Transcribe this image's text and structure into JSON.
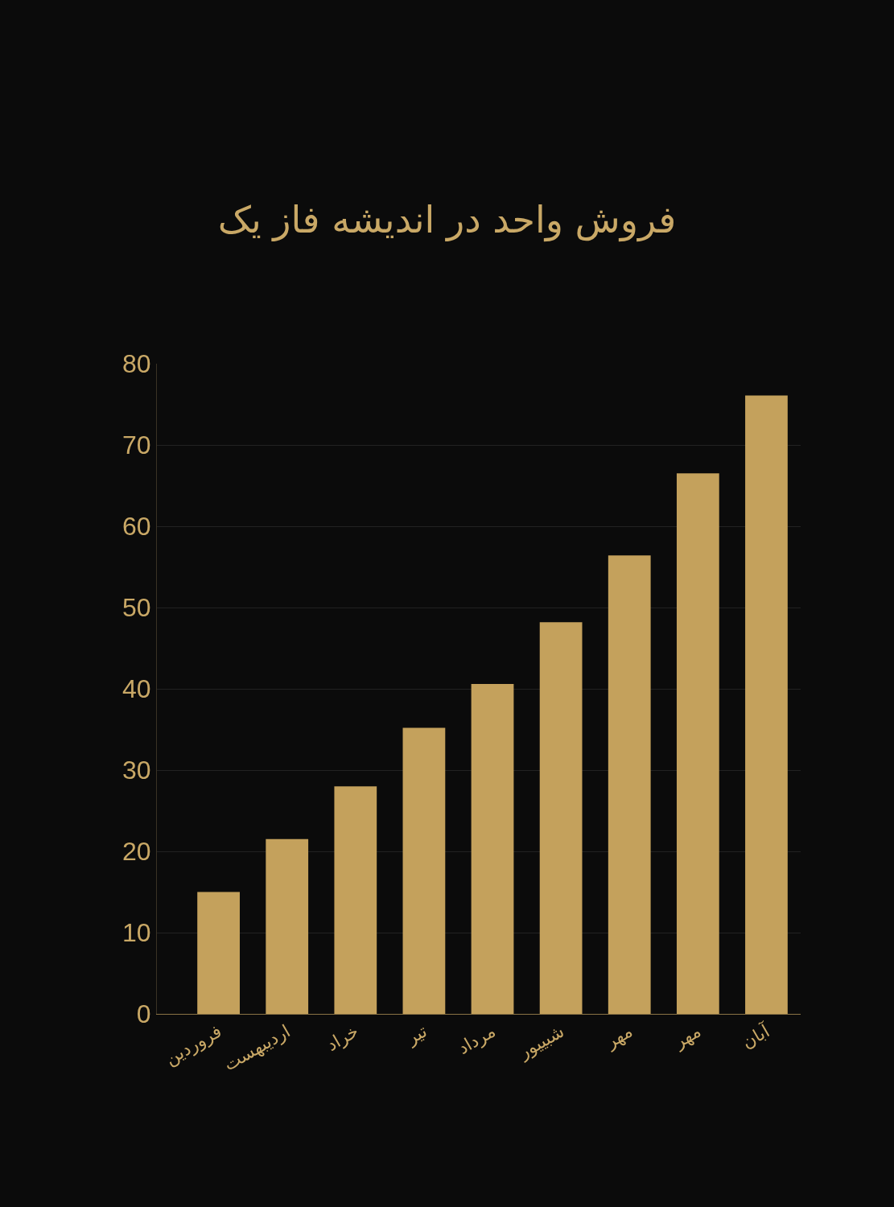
{
  "chart_data": {
    "type": "bar",
    "title": "فروش واحد در اندیشه فاز یک",
    "categories": [
      "فروردین",
      "اردیبهست",
      "خراد",
      "تیر",
      "مرداد",
      "شبییور",
      "مهر",
      "مهر",
      "آبان"
    ],
    "values": [
      15,
      21.5,
      28,
      35.2,
      40.6,
      48.2,
      56.4,
      66.5,
      76.1
    ],
    "color": "#c4a15c",
    "ylim": [
      0,
      80
    ],
    "yticks": [
      0,
      10,
      20,
      30,
      40,
      50,
      60,
      70,
      80
    ],
    "grid": "y"
  }
}
